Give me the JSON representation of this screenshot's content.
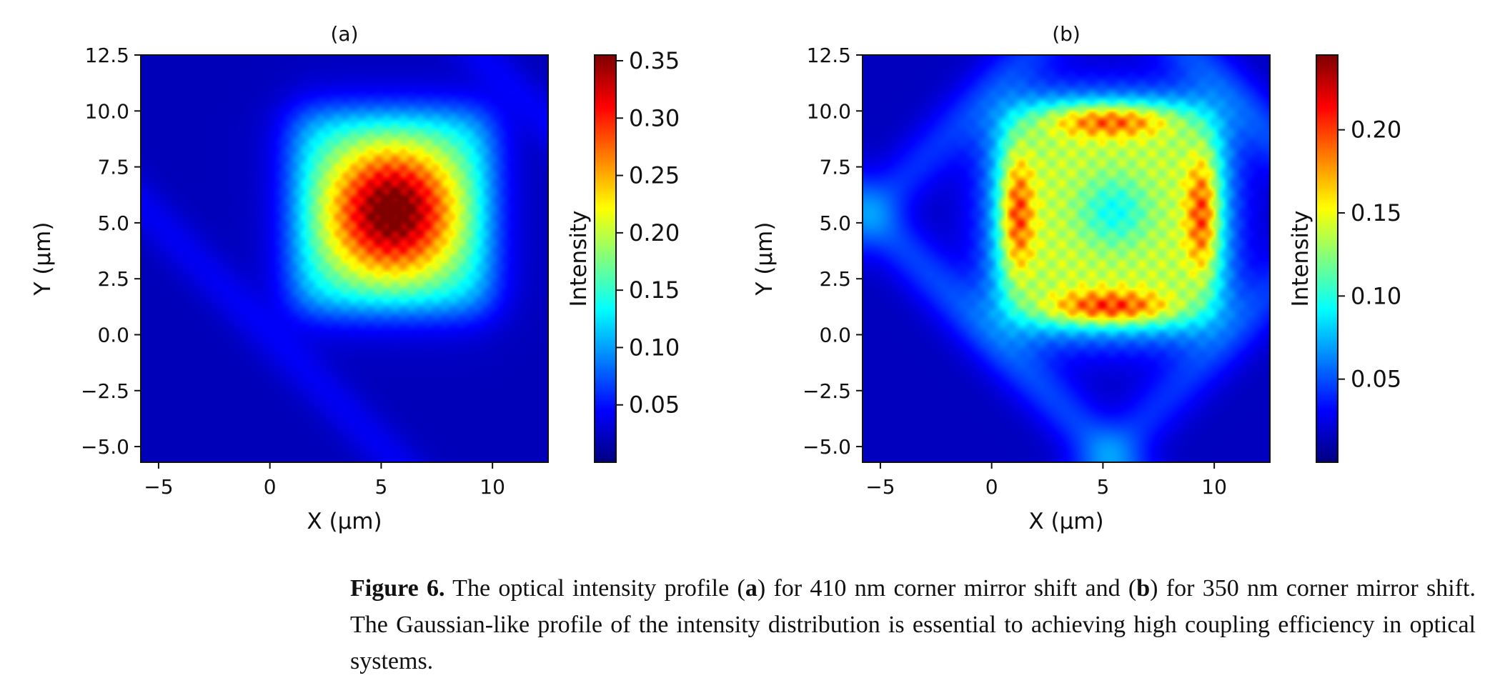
{
  "chart_data": [
    {
      "type": "heatmap",
      "title": "(a)",
      "xlabel": "X (μm)",
      "ylabel": "Y (μm)",
      "xlim": [
        -5.8,
        12.5
      ],
      "ylim": [
        -5.7,
        12.5
      ],
      "xticks": [
        "−5",
        "0",
        "5",
        "10"
      ],
      "xtick_values": [
        -5,
        0,
        5,
        10
      ],
      "yticks": [
        "12.5",
        "10.0",
        "7.5",
        "5.0",
        "2.5",
        "0.0",
        "−2.5",
        "−5.0"
      ],
      "ytick_values": [
        12.5,
        10.0,
        7.5,
        5.0,
        2.5,
        0.0,
        -2.5,
        -5.0
      ],
      "colormap": "jet",
      "colorbar": {
        "label": "Intensity",
        "range": [
          0.0,
          0.355
        ],
        "ticks": [
          "0.35",
          "0.30",
          "0.25",
          "0.20",
          "0.15",
          "0.10",
          "0.05"
        ],
        "tick_values": [
          0.35,
          0.3,
          0.25,
          0.2,
          0.15,
          0.1,
          0.05
        ]
      },
      "profile": "centered-peak",
      "background_level": 0.02,
      "mode_region": {
        "x": [
          1.0,
          10.0
        ],
        "y": [
          1.0,
          10.0
        ]
      },
      "peak": {
        "x": 5.5,
        "y": 5.5,
        "value": 0.35
      }
    },
    {
      "type": "heatmap",
      "title": "(b)",
      "xlabel": "X (μm)",
      "ylabel": "Y (μm)",
      "xlim": [
        -5.8,
        12.5
      ],
      "ylim": [
        -5.7,
        12.5
      ],
      "xticks": [
        "−5",
        "0",
        "5",
        "10"
      ],
      "xtick_values": [
        -5,
        0,
        5,
        10
      ],
      "yticks": [
        "12.5",
        "10.0",
        "7.5",
        "5.0",
        "2.5",
        "0.0",
        "−2.5",
        "−5.0"
      ],
      "ytick_values": [
        12.5,
        10.0,
        7.5,
        5.0,
        2.5,
        0.0,
        -2.5,
        -5.0
      ],
      "colormap": "jet",
      "colorbar": {
        "label": "Intensity",
        "range": [
          0.0,
          0.245
        ],
        "ticks": [
          "0.20",
          "0.15",
          "0.10",
          "0.05"
        ],
        "tick_values": [
          0.2,
          0.15,
          0.1,
          0.05
        ]
      },
      "profile": "edge-peaked",
      "background_level": 0.015,
      "mode_region": {
        "x": [
          0.3,
          10.3
        ],
        "y": [
          0.3,
          10.3
        ]
      },
      "peak": {
        "x": 5.5,
        "y": 9.8,
        "value": 0.24
      },
      "center_dip": {
        "x": 5.5,
        "y": 5.5,
        "value": 0.07
      }
    }
  ],
  "caption": {
    "label": "Figure 6.",
    "part1": " The optical intensity profile (",
    "a": "a",
    "part2": ") for 410 nm corner mirror shift and (",
    "b": "b",
    "part3": ") for 350 nm corner mirror shift.  The Gaussian-like profile of the intensity distribution is essential to achieving high coupling efficiency in optical systems."
  }
}
